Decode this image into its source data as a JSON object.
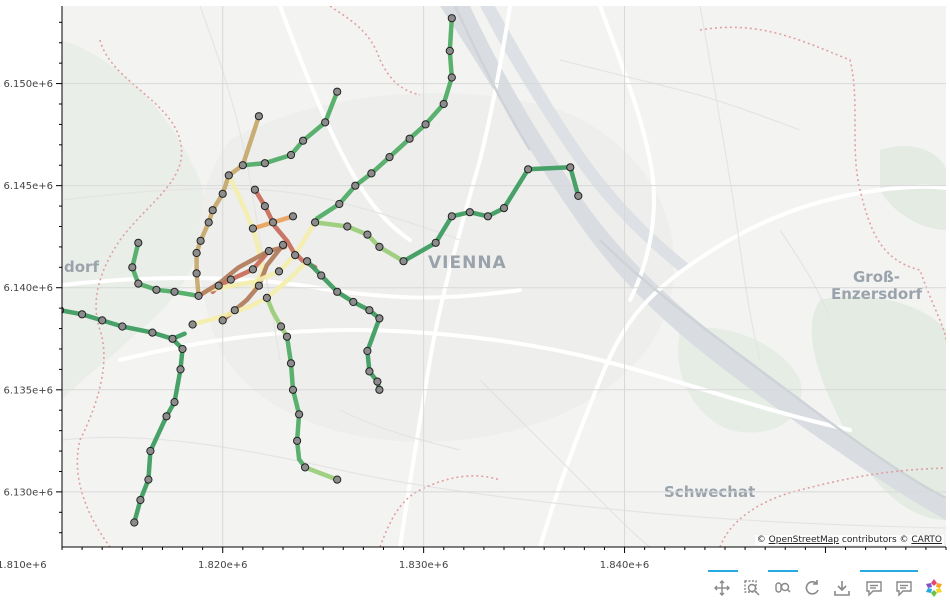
{
  "map": {
    "x_axis": {
      "range": [
        1812000,
        1856000
      ],
      "ticks": [
        1810000,
        1820000,
        1830000,
        1840000
      ],
      "tick_labels": [
        "1.810e+6",
        "1.820e+6",
        "1.830e+6",
        "1.840e+6"
      ]
    },
    "y_axis": {
      "range": [
        6127300,
        6153800
      ],
      "ticks": [
        6130000,
        6135000,
        6140000,
        6145000,
        6150000
      ],
      "tick_labels": [
        "6.130e+6",
        "6.135e+6",
        "6.140e+6",
        "6.145e+6",
        "6.150e+6"
      ]
    },
    "place_labels": [
      "VIENNA",
      "dorf",
      "Groß-",
      "Enzersdorf",
      "Schwechat"
    ],
    "attribution": {
      "prefix": "©",
      "osm": "OpenStreetMap",
      "middle": "contributors ©",
      "carto": "CARTO"
    },
    "colors": {
      "dark_green": "#2e8b57",
      "green": "#4daa63",
      "light_green": "#99cc77",
      "yellow": "#f4eeaa",
      "tan": "#c4a86a",
      "orange": "#e8a25c",
      "red": "#c86a58",
      "brown": "#b07a5a"
    },
    "lines": [
      {
        "color": "#3a9a5c",
        "points": [
          [
            1810150,
            6139700
          ],
          [
            1811900,
            6138900
          ],
          [
            1813000,
            6138700
          ],
          [
            1814000,
            6138400
          ],
          [
            1815000,
            6138100
          ],
          [
            1816500,
            6137800
          ],
          [
            1817500,
            6137500
          ],
          [
            1818100,
            6137750
          ]
        ]
      },
      {
        "color": "#3a9a5c",
        "points": [
          [
            1815600,
            6128500
          ],
          [
            1815900,
            6129600
          ],
          [
            1816300,
            6130600
          ],
          [
            1816400,
            6132000
          ],
          [
            1817200,
            6133700
          ],
          [
            1817600,
            6134400
          ],
          [
            1817900,
            6136000
          ],
          [
            1818000,
            6137000
          ],
          [
            1817500,
            6137500
          ]
        ]
      },
      {
        "color": "#4daa63",
        "points": [
          [
            1815800,
            6142200
          ],
          [
            1815500,
            6141000
          ],
          [
            1815800,
            6140200
          ],
          [
            1816700,
            6139900
          ],
          [
            1817600,
            6139800
          ],
          [
            1818800,
            6139600
          ]
        ]
      },
      {
        "color": "#c4a86a",
        "points": [
          [
            1818800,
            6139600
          ],
          [
            1818700,
            6140700
          ],
          [
            1818700,
            6141700
          ],
          [
            1818900,
            6142300
          ],
          [
            1819300,
            6143200
          ],
          [
            1819500,
            6143800
          ],
          [
            1820000,
            6144600
          ],
          [
            1820300,
            6145500
          ],
          [
            1821000,
            6146000
          ]
        ]
      },
      {
        "color": "#c4a86a",
        "points": [
          [
            1821000,
            6146000
          ],
          [
            1821800,
            6148400
          ]
        ]
      },
      {
        "color": "#f4eeaa",
        "points": [
          [
            1820300,
            6145500
          ],
          [
            1820800,
            6144500
          ],
          [
            1821200,
            6143600
          ],
          [
            1821600,
            6142600
          ],
          [
            1821800,
            6141800
          ],
          [
            1822000,
            6140800
          ],
          [
            1821500,
            6140000
          ]
        ]
      },
      {
        "color": "#4daa63",
        "points": [
          [
            1821000,
            6146000
          ],
          [
            1822100,
            6146100
          ],
          [
            1823400,
            6146500
          ],
          [
            1824000,
            6147200
          ],
          [
            1825100,
            6148100
          ],
          [
            1825700,
            6149600
          ]
        ]
      },
      {
        "color": "#c86a58",
        "points": [
          [
            1821600,
            6144800
          ],
          [
            1822100,
            6144000
          ],
          [
            1822600,
            6143000
          ],
          [
            1823200,
            6142300
          ],
          [
            1823500,
            6141800
          ],
          [
            1824000,
            6141300
          ],
          [
            1824600,
            6141000
          ]
        ]
      },
      {
        "color": "#e8a25c",
        "points": [
          [
            1821500,
            6142900
          ],
          [
            1822500,
            6143200
          ],
          [
            1823500,
            6143500
          ]
        ]
      },
      {
        "color": "#c86a58",
        "points": [
          [
            1822300,
            6141800
          ],
          [
            1821500,
            6140900
          ],
          [
            1820400,
            6140400
          ],
          [
            1819800,
            6140100
          ],
          [
            1819500,
            6139800
          ]
        ]
      },
      {
        "color": "#b07a5a",
        "points": [
          [
            1823000,
            6142100
          ],
          [
            1822200,
            6141100
          ],
          [
            1821800,
            6140100
          ],
          [
            1821200,
            6139400
          ],
          [
            1820600,
            6138900
          ],
          [
            1820000,
            6138400
          ]
        ]
      },
      {
        "color": "#f4eeaa",
        "points": [
          [
            1818800,
            6139600
          ],
          [
            1819300,
            6139900
          ],
          [
            1820500,
            6140100
          ],
          [
            1821600,
            6140300
          ],
          [
            1822800,
            6140800
          ],
          [
            1823600,
            6141600
          ],
          [
            1824700,
            6143400
          ]
        ]
      },
      {
        "color": "#f4eeaa",
        "points": [
          [
            1818500,
            6138200
          ],
          [
            1820000,
            6138600
          ],
          [
            1821400,
            6139100
          ],
          [
            1822200,
            6139500
          ],
          [
            1823400,
            6140500
          ],
          [
            1824200,
            6141300
          ]
        ]
      },
      {
        "color": "#b07a5a",
        "points": [
          [
            1818800,
            6139600
          ],
          [
            1819800,
            6140200
          ],
          [
            1820800,
            6141000
          ],
          [
            1822300,
            6141800
          ],
          [
            1823100,
            6142000
          ]
        ]
      },
      {
        "color": "#99cc77",
        "points": [
          [
            1822200,
            6139500
          ],
          [
            1822500,
            6138800
          ],
          [
            1822900,
            6138100
          ],
          [
            1823200,
            6137600
          ]
        ]
      },
      {
        "color": "#4daa63",
        "points": [
          [
            1823200,
            6137600
          ],
          [
            1823400,
            6136300
          ],
          [
            1823500,
            6135000
          ],
          [
            1823800,
            6133800
          ],
          [
            1823700,
            6132500
          ],
          [
            1823800,
            6131600
          ],
          [
            1824100,
            6131200
          ]
        ]
      },
      {
        "color": "#99cc77",
        "points": [
          [
            1824100,
            6131200
          ],
          [
            1825700,
            6130600
          ]
        ]
      },
      {
        "color": "#3a9a5c",
        "points": [
          [
            1824200,
            6141300
          ],
          [
            1824900,
            6140600
          ],
          [
            1825700,
            6139800
          ],
          [
            1826500,
            6139300
          ],
          [
            1827300,
            6138900
          ],
          [
            1827800,
            6138500
          ],
          [
            1827200,
            6136900
          ],
          [
            1827300,
            6135900
          ],
          [
            1827700,
            6135400
          ],
          [
            1827800,
            6135000
          ]
        ]
      },
      {
        "color": "#99cc77",
        "points": [
          [
            1824600,
            6143200
          ],
          [
            1826200,
            6143000
          ],
          [
            1827200,
            6142600
          ],
          [
            1827800,
            6142000
          ],
          [
            1829000,
            6141300
          ]
        ]
      },
      {
        "color": "#4daa63",
        "points": [
          [
            1824700,
            6143400
          ],
          [
            1825800,
            6144100
          ],
          [
            1826600,
            6145000
          ],
          [
            1827400,
            6145600
          ],
          [
            1828300,
            6146400
          ],
          [
            1829300,
            6147300
          ],
          [
            1830100,
            6148000
          ],
          [
            1831000,
            6149000
          ],
          [
            1831400,
            6150300
          ],
          [
            1831300,
            6151600
          ],
          [
            1831400,
            6153200
          ]
        ]
      },
      {
        "color": "#3a9a5c",
        "points": [
          [
            1829000,
            6141300
          ],
          [
            1830600,
            6142200
          ],
          [
            1831400,
            6143500
          ],
          [
            1832300,
            6143700
          ],
          [
            1833200,
            6143500
          ],
          [
            1834000,
            6143900
          ],
          [
            1835200,
            6145800
          ],
          [
            1837300,
            6145900
          ],
          [
            1837700,
            6144500
          ]
        ]
      }
    ],
    "stations": [
      [
        1810150,
        6139700
      ],
      [
        1811900,
        6138900
      ],
      [
        1813000,
        6138700
      ],
      [
        1814000,
        6138400
      ],
      [
        1815000,
        6138100
      ],
      [
        1816500,
        6137800
      ],
      [
        1817500,
        6137500
      ],
      [
        1815600,
        6128500
      ],
      [
        1815900,
        6129600
      ],
      [
        1816300,
        6130600
      ],
      [
        1816400,
        6132000
      ],
      [
        1817200,
        6133700
      ],
      [
        1817600,
        6134400
      ],
      [
        1817900,
        6136000
      ],
      [
        1818000,
        6137000
      ],
      [
        1815800,
        6142200
      ],
      [
        1815500,
        6141000
      ],
      [
        1815800,
        6140200
      ],
      [
        1816700,
        6139900
      ],
      [
        1817600,
        6139800
      ],
      [
        1818800,
        6139600
      ],
      [
        1818700,
        6140700
      ],
      [
        1818700,
        6141700
      ],
      [
        1818900,
        6142300
      ],
      [
        1819300,
        6143200
      ],
      [
        1819500,
        6143800
      ],
      [
        1820000,
        6144600
      ],
      [
        1820300,
        6145500
      ],
      [
        1821000,
        6146000
      ],
      [
        1821800,
        6148400
      ],
      [
        1822100,
        6146100
      ],
      [
        1823400,
        6146500
      ],
      [
        1824000,
        6147200
      ],
      [
        1825100,
        6148100
      ],
      [
        1825700,
        6149600
      ],
      [
        1821600,
        6144800
      ],
      [
        1822100,
        6144000
      ],
      [
        1822500,
        6143200
      ],
      [
        1823500,
        6143500
      ],
      [
        1821500,
        6142900
      ],
      [
        1822300,
        6141800
      ],
      [
        1821500,
        6140900
      ],
      [
        1820400,
        6140400
      ],
      [
        1819800,
        6140100
      ],
      [
        1820600,
        6138900
      ],
      [
        1820000,
        6138400
      ],
      [
        1818500,
        6138200
      ],
      [
        1823000,
        6142100
      ],
      [
        1823600,
        6141600
      ],
      [
        1824200,
        6141300
      ],
      [
        1822800,
        6140800
      ],
      [
        1821800,
        6140100
      ],
      [
        1822200,
        6139500
      ],
      [
        1822900,
        6138100
      ],
      [
        1823200,
        6137600
      ],
      [
        1823400,
        6136300
      ],
      [
        1823500,
        6135000
      ],
      [
        1823800,
        6133800
      ],
      [
        1823700,
        6132500
      ],
      [
        1824100,
        6131200
      ],
      [
        1825700,
        6130600
      ],
      [
        1824900,
        6140600
      ],
      [
        1825700,
        6139800
      ],
      [
        1826500,
        6139300
      ],
      [
        1827300,
        6138900
      ],
      [
        1827800,
        6138500
      ],
      [
        1827200,
        6136900
      ],
      [
        1827300,
        6135900
      ],
      [
        1827700,
        6135400
      ],
      [
        1827800,
        6135000
      ],
      [
        1824600,
        6143200
      ],
      [
        1826200,
        6143000
      ],
      [
        1827200,
        6142600
      ],
      [
        1827800,
        6142000
      ],
      [
        1829000,
        6141300
      ],
      [
        1825800,
        6144100
      ],
      [
        1826600,
        6145000
      ],
      [
        1827400,
        6145600
      ],
      [
        1828300,
        6146400
      ],
      [
        1829300,
        6147300
      ],
      [
        1830100,
        6148000
      ],
      [
        1831000,
        6149000
      ],
      [
        1831400,
        6150300
      ],
      [
        1831300,
        6151600
      ],
      [
        1831400,
        6153200
      ],
      [
        1830600,
        6142200
      ],
      [
        1831400,
        6143500
      ],
      [
        1832300,
        6143700
      ],
      [
        1833200,
        6143500
      ],
      [
        1834000,
        6143900
      ],
      [
        1835200,
        6145800
      ],
      [
        1837300,
        6145900
      ],
      [
        1837700,
        6144500
      ]
    ]
  },
  "toolbar": {
    "tools": [
      "pan-icon",
      "box-zoom-icon",
      "wheel-zoom-icon",
      "reset-icon",
      "save-icon",
      "hover-icon",
      "hover-icon-2",
      "bokeh-logo"
    ]
  }
}
